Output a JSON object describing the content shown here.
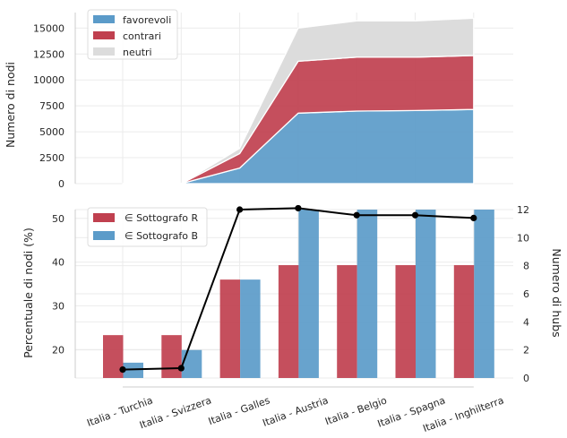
{
  "chart_data": [
    {
      "type": "area",
      "stacked": true,
      "categories": [
        "Italia - Turchia",
        "Italia - Svizzera",
        "Italia - Galles",
        "Italia - Austria",
        "Italia - Belgio",
        "Italia - Spagna",
        "Italia - Inghilterra"
      ],
      "series": [
        {
          "name": "favorevoli",
          "color": "#5b9bc9",
          "values": [
            0,
            0,
            1500,
            6800,
            7000,
            7050,
            7150
          ]
        },
        {
          "name": "contrari",
          "color": "#c0404f",
          "values": [
            0,
            0,
            1400,
            5000,
            5200,
            5150,
            5200
          ]
        },
        {
          "name": "neutri",
          "color": "#dcdcdc",
          "values": [
            0,
            0,
            500,
            3200,
            3500,
            3500,
            3600
          ]
        }
      ],
      "ylabel": "Numero di nodi",
      "yticks": [
        0,
        2500,
        5000,
        7500,
        10000,
        12500,
        15000
      ],
      "ylim": [
        0,
        16500
      ],
      "grid": true,
      "legend": "top-left"
    },
    {
      "type": "bar",
      "categories": [
        "Italia - Turchia",
        "Italia - Svizzera",
        "Italia - Galles",
        "Italia - Austria",
        "Italia - Belgio",
        "Italia - Spagna",
        "Italia - Inghilterra"
      ],
      "series": [
        {
          "name": "∈ Sottografo R",
          "color": "#c0404f",
          "values": [
            23.3,
            23.3,
            36.0,
            39.3,
            39.3,
            39.3,
            39.3
          ]
        },
        {
          "name": "∈ Sottografo B",
          "color": "#5b9bc9",
          "values": [
            17.0,
            19.9,
            36.0,
            52.0,
            52.0,
            52.0,
            52.0
          ]
        }
      ],
      "line": {
        "color": "#000000",
        "values": [
          0.6,
          0.7,
          12.0,
          12.1,
          11.6,
          11.6,
          11.4
        ]
      },
      "ylabel": "Percentuale di nodi (%)",
      "y2label": "Numero di hubs",
      "yticks": [
        20,
        30,
        40,
        50
      ],
      "ylim": [
        13.5,
        52.0
      ],
      "y2ticks": [
        0,
        2,
        4,
        6,
        8,
        10,
        12
      ],
      "y2lim": [
        0,
        12
      ],
      "grid": true,
      "legend": "top-left"
    }
  ]
}
